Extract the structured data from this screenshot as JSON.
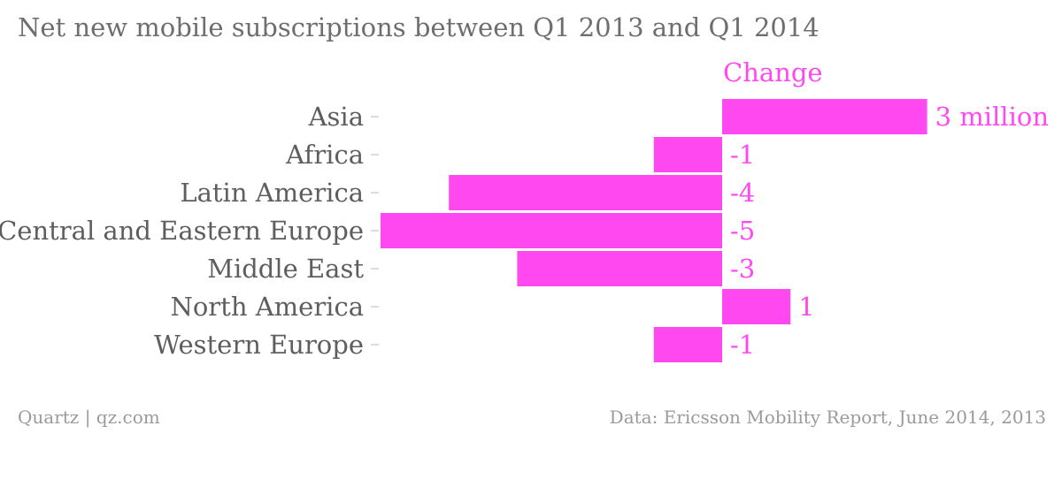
{
  "chart_data": {
    "type": "bar",
    "orientation": "horizontal",
    "title": "Net new mobile subscriptions between Q1 2013 and Q1 2014",
    "column_header": "Change",
    "categories": [
      "Asia",
      "Africa",
      "Latin America",
      "Central and Eastern Europe",
      "Middle East",
      "North America",
      "Western Europe"
    ],
    "series": [
      {
        "values": [
          3,
          -1,
          -4,
          -5,
          -3,
          1,
          -1
        ]
      }
    ],
    "data_labels": [
      "3 million",
      "-1",
      "-4",
      "-5",
      "-3",
      "1",
      "-1"
    ],
    "xlim": [
      -5,
      3
    ],
    "grid": false,
    "legend": "none",
    "colors": {
      "bar": "#ff48f0",
      "label": "#ff48f0",
      "category_text": "#5e5e5e",
      "tick": "#d0d0d0"
    }
  },
  "footer": {
    "source_left": "Quartz | qz.com",
    "source_right": "Data: Ericsson Mobility Report, June 2014, 2013"
  }
}
